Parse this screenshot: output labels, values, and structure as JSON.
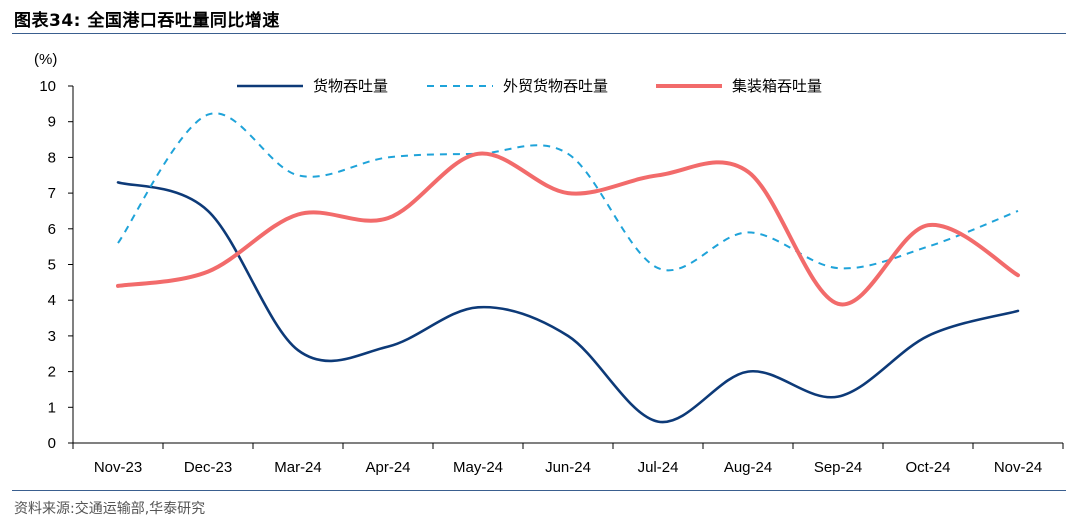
{
  "header": {
    "title": "图表34:  全国港口吞吐量同比增速"
  },
  "footer": {
    "source": "资料来源:交通运输部,华泰研究"
  },
  "colors": {
    "rule": "#3a5f8f",
    "series_cargo": "#0d3a78",
    "series_foreign": "#1fa3d9",
    "series_container": "#f26b6b"
  },
  "chart_data": {
    "type": "line",
    "title": "",
    "ylabel": "(%)",
    "xlabel": "",
    "ylim": [
      0,
      10
    ],
    "yticks": [
      "0",
      "1",
      "2",
      "3",
      "4",
      "5",
      "6",
      "7",
      "8",
      "9",
      "10"
    ],
    "categories": [
      "Nov-23",
      "Dec-23",
      "Mar-24",
      "Apr-24",
      "May-24",
      "Jun-24",
      "Jul-24",
      "Aug-24",
      "Sep-24",
      "Oct-24",
      "Nov-24"
    ],
    "legend_position": "top",
    "grid": false,
    "series": [
      {
        "name": "货物吞吐量",
        "style": "solid",
        "color": "#0d3a78",
        "values": [
          7.3,
          6.5,
          2.6,
          2.7,
          3.8,
          3.0,
          0.6,
          2.0,
          1.3,
          3.0,
          3.7
        ]
      },
      {
        "name": "外贸货物吞吐量",
        "style": "dashed",
        "color": "#1fa3d9",
        "values": [
          5.6,
          9.2,
          7.5,
          8.0,
          8.1,
          8.1,
          4.9,
          5.9,
          4.9,
          5.5,
          6.5
        ]
      },
      {
        "name": "集装箱吞吐量",
        "style": "solid",
        "color": "#f26b6b",
        "values": [
          4.4,
          4.8,
          6.4,
          6.3,
          8.1,
          7.0,
          7.5,
          7.6,
          3.9,
          6.1,
          4.7
        ]
      }
    ]
  }
}
